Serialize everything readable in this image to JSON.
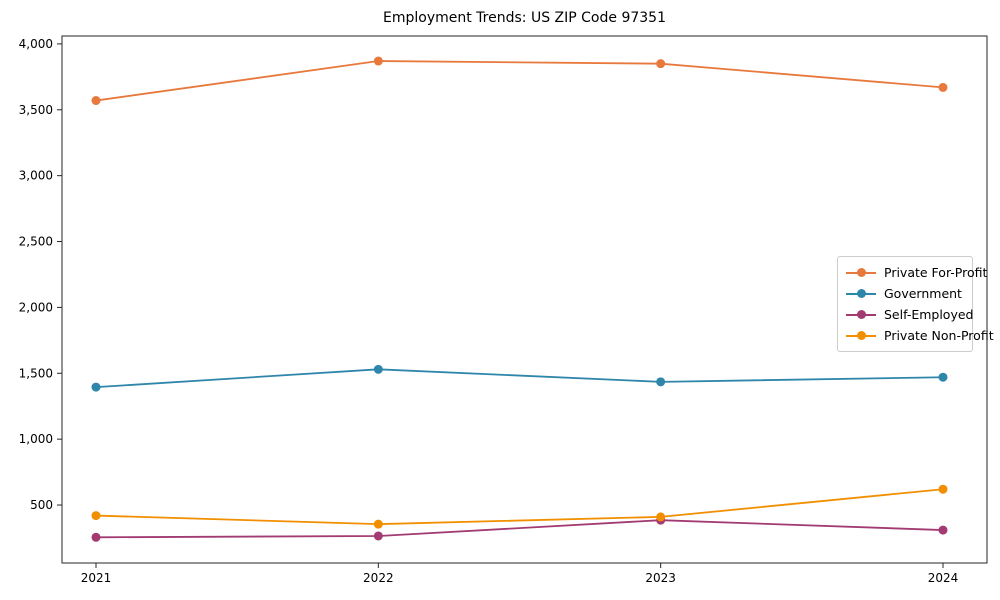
{
  "chart_data": {
    "type": "line",
    "title": "Employment Trends: US ZIP Code 97351",
    "x": [
      "2021",
      "2022",
      "2023",
      "2024"
    ],
    "series": [
      {
        "name": "Private For-Profit",
        "color": "#E8793D",
        "values": [
          3570,
          3870,
          3850,
          3670
        ]
      },
      {
        "name": "Government",
        "color": "#2E86AB",
        "values": [
          1395,
          1530,
          1435,
          1470
        ]
      },
      {
        "name": "Self-Employed",
        "color": "#A23B72",
        "values": [
          255,
          265,
          385,
          310
        ]
      },
      {
        "name": "Private Non-Profit",
        "color": "#F18F01",
        "values": [
          420,
          355,
          410,
          620
        ]
      }
    ],
    "xlabel": "",
    "ylabel": "",
    "ylim": [
      60,
      4060
    ],
    "y_ticks": [
      500,
      1000,
      1500,
      2000,
      2500,
      3000,
      3500,
      4000
    ],
    "y_tick_labels": [
      "500",
      "1,000",
      "1,500",
      "2,000",
      "2,500",
      "3,000",
      "3,500",
      "4,000"
    ],
    "grid": false,
    "legend_position": "center-right",
    "frame_color": "#262626",
    "marker": "circle",
    "marker_radius": 4.5,
    "line_width": 1.8
  }
}
